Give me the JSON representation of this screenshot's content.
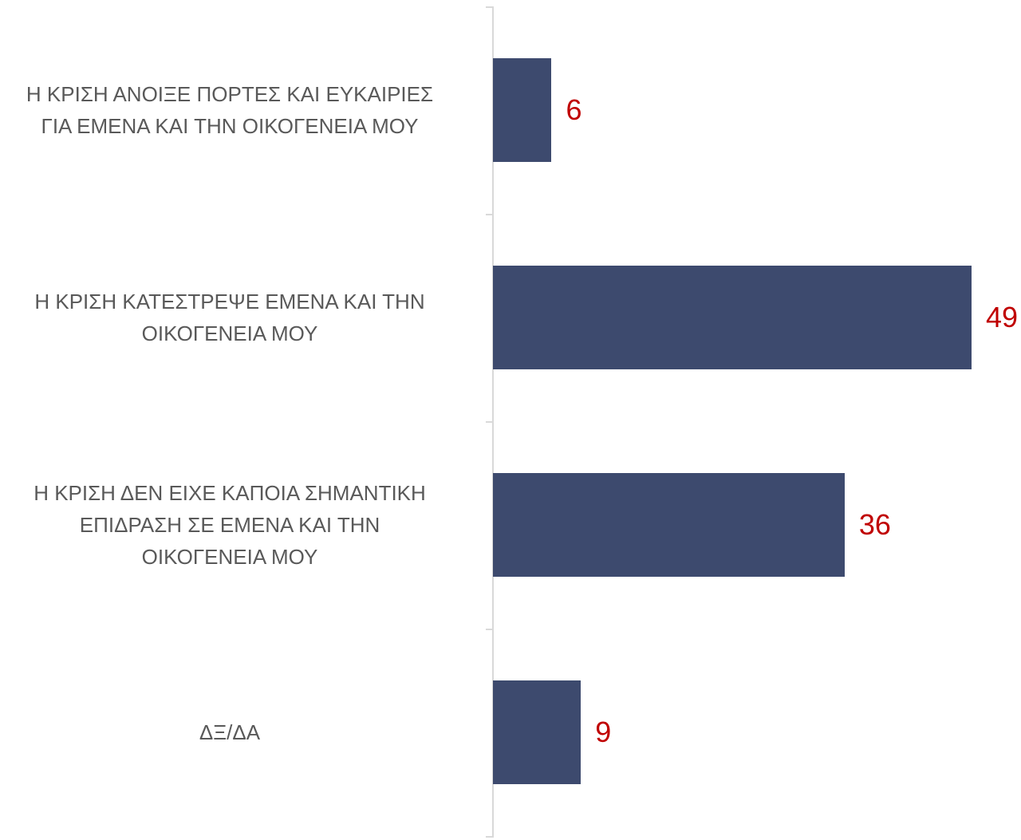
{
  "chart_data": {
    "type": "bar",
    "orientation": "horizontal",
    "categories": [
      "Η ΚΡΙΣΗ ΑΝΟΙΞΕ ΠΟΡΤΕΣ ΚΑΙ ΕΥΚΑΙΡΙΕΣ\nΓΙΑ ΕΜΕΝΑ ΚΑΙ ΤΗΝ ΟΙΚΟΓΕΝΕΙΑ ΜΟΥ",
      "Η ΚΡΙΣΗ ΚΑΤΕΣΤΡΕΨΕ ΕΜΕΝΑ ΚΑΙ ΤΗΝ\nΟΙΚΟΓΕΝΕΙΑ ΜΟΥ",
      "Η ΚΡΙΣΗ ΔΕΝ ΕΙΧΕ ΚΑΠΟΙΑ ΣΗΜΑΝΤΙΚΗ\nΕΠΙΔΡΑΣΗ ΣΕ ΕΜΕΝΑ ΚΑΙ ΤΗΝ\nΟΙΚΟΓΕΝΕΙΑ ΜΟΥ",
      "ΔΞ/ΔΑ"
    ],
    "values": [
      6,
      49,
      36,
      9
    ],
    "color": "#3d4a6e",
    "label_color": "#c00000"
  }
}
